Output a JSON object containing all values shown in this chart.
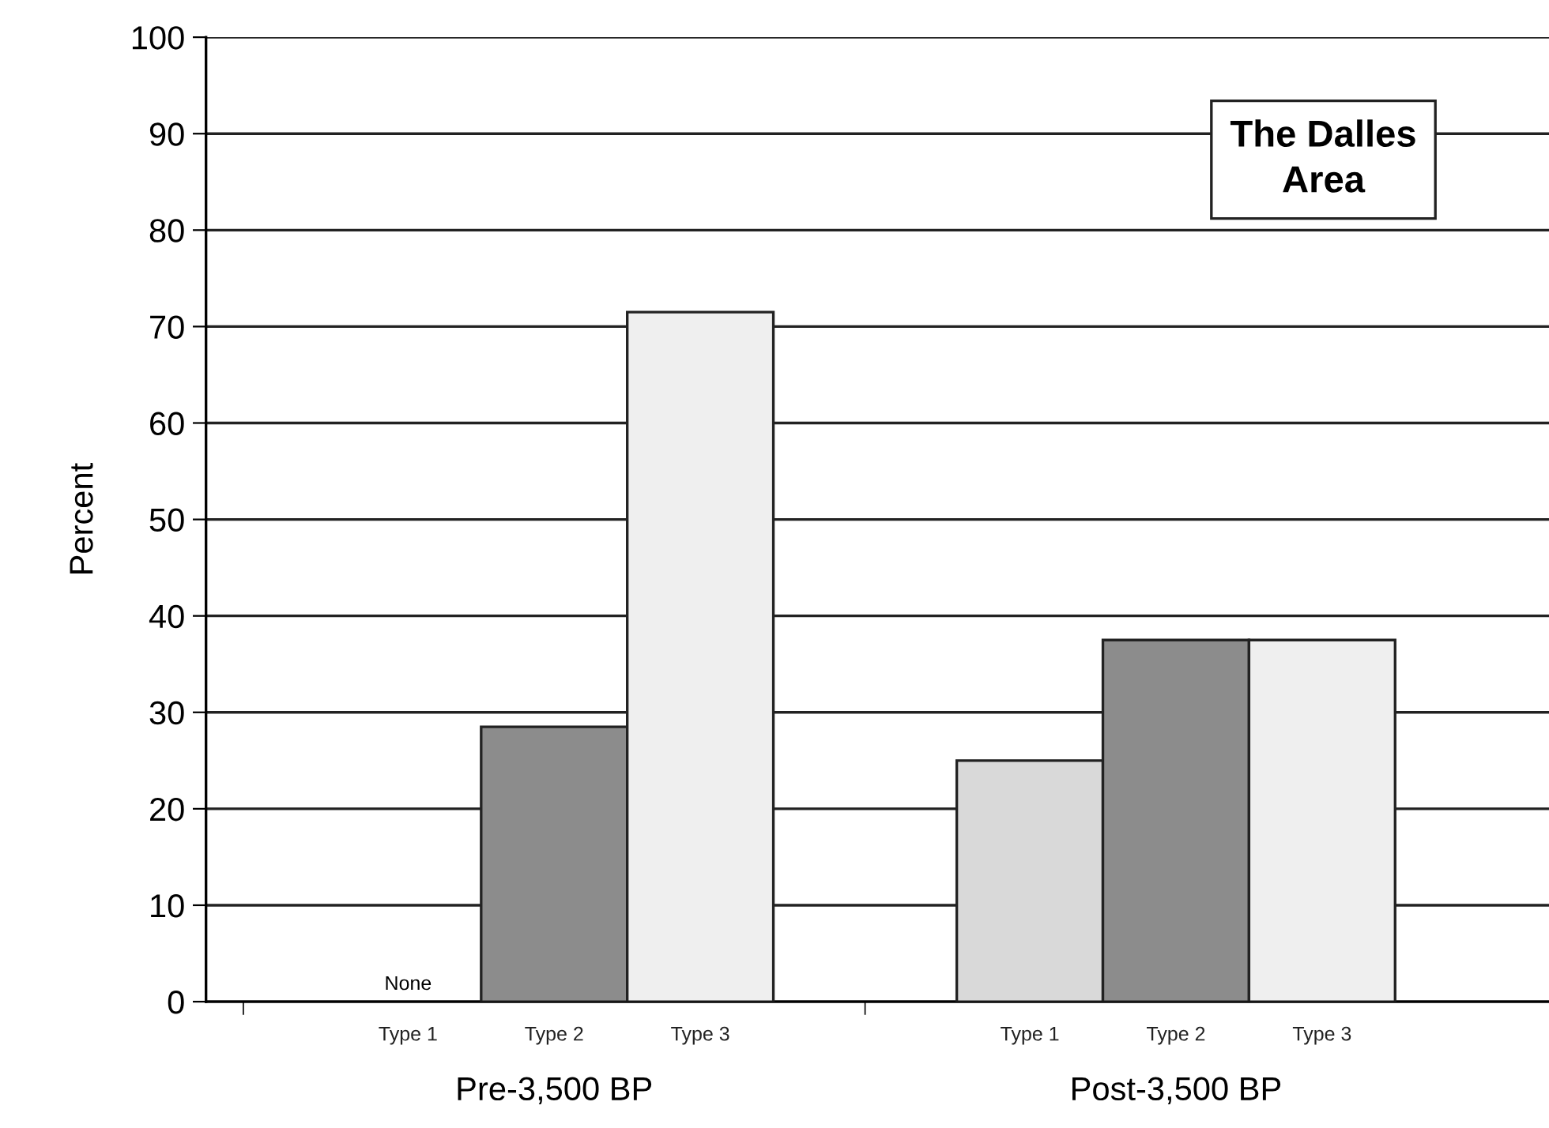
{
  "chart_data": {
    "type": "bar",
    "title": "The Dalles\nArea",
    "ylabel": "Percent",
    "categories": [
      "Pre-3,500 BP",
      "Post-3,500 BP"
    ],
    "series": [
      {
        "name": "Type 1",
        "color": "#d9d9d9",
        "values": [
          0,
          25
        ]
      },
      {
        "name": "Type 2",
        "color": "#8c8c8c",
        "values": [
          28.5,
          37.5
        ]
      },
      {
        "name": "Type 3",
        "color": "#efefef",
        "values": [
          71.5,
          37.5
        ]
      }
    ],
    "annotations": [
      "None"
    ],
    "ylim": [
      0,
      100
    ],
    "yticks": [
      0,
      10,
      20,
      30,
      40,
      50,
      60,
      70,
      80,
      90,
      100
    ],
    "grid": "y",
    "legend": false
  }
}
